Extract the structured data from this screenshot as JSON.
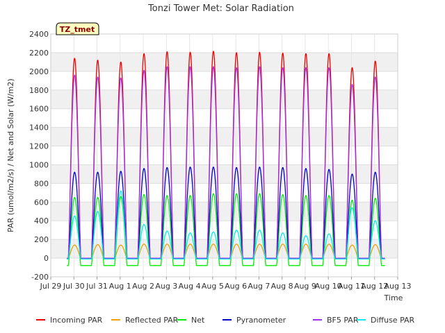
{
  "chart_data": {
    "type": "line",
    "title": "Tonzi Tower Met: Solar Radiation",
    "xlabel": "Time",
    "ylabel": "PAR (umol/m2/s) / Net and Solar (W/m2)",
    "tag_label": "TZ_tmet",
    "ylim": [
      -200,
      2400
    ],
    "y_ticks": [
      -200,
      0,
      200,
      400,
      600,
      800,
      1000,
      1200,
      1400,
      1600,
      1800,
      2000,
      2200,
      2400
    ],
    "xlim": [
      0,
      15
    ],
    "x_ticks": [
      {
        "x": 0,
        "label": "Jul 29"
      },
      {
        "x": 1,
        "label": "Jul 30"
      },
      {
        "x": 2,
        "label": "Jul 31"
      },
      {
        "x": 3,
        "label": "Aug 1"
      },
      {
        "x": 4,
        "label": "Aug 2"
      },
      {
        "x": 5,
        "label": "Aug 3"
      },
      {
        "x": 6,
        "label": "Aug 4"
      },
      {
        "x": 7,
        "label": "Aug 5"
      },
      {
        "x": 8,
        "label": "Aug 6"
      },
      {
        "x": 9,
        "label": "Aug 7"
      },
      {
        "x": 10,
        "label": "Aug 8"
      },
      {
        "x": 11,
        "label": "Aug 9"
      },
      {
        "x": 12,
        "label": "Aug 10"
      },
      {
        "x": 13,
        "label": "Aug 11"
      },
      {
        "x": 14,
        "label": "Aug 12"
      },
      {
        "x": 15,
        "label": "Aug 13"
      }
    ],
    "grid": true,
    "legend_position": "bottom",
    "series": [
      {
        "name": "Incoming PAR",
        "color": "#ee0000",
        "night": 0,
        "peaks": [
          2140,
          2120,
          2100,
          2190,
          2210,
          2205,
          2215,
          2200,
          2205,
          2195,
          2190,
          2190,
          2040,
          2110
        ]
      },
      {
        "name": "Reflected PAR",
        "color": "#f0a000",
        "night": 0,
        "peaks": [
          140,
          145,
          140,
          150,
          150,
          150,
          150,
          150,
          150,
          150,
          150,
          150,
          140,
          145
        ]
      },
      {
        "name": "Net",
        "color": "#00ee00",
        "night": -80,
        "peaks": [
          650,
          650,
          660,
          680,
          670,
          670,
          690,
          690,
          690,
          680,
          670,
          670,
          620,
          640
        ]
      },
      {
        "name": "Pyranometer",
        "color": "#0000cc",
        "night": -10,
        "peaks": [
          920,
          920,
          930,
          960,
          970,
          975,
          975,
          970,
          975,
          970,
          960,
          950,
          900,
          920
        ]
      },
      {
        "name": "BF5 PAR",
        "color": "#9933ee",
        "night": 0,
        "peaks": [
          1960,
          1940,
          1930,
          2010,
          2050,
          2050,
          2050,
          2040,
          2050,
          2040,
          2040,
          2040,
          1860,
          1940
        ]
      },
      {
        "name": "Diffuse PAR",
        "color": "#00eeee",
        "night": -10,
        "peaks": [
          450,
          500,
          720,
          360,
          290,
          270,
          280,
          300,
          300,
          270,
          240,
          260,
          540,
          400
        ]
      }
    ],
    "day_centers": [
      1.03,
      2.03,
      3.03,
      4.03,
      5.03,
      6.03,
      7.03,
      8.03,
      9.03,
      10.03,
      11.03,
      12.03,
      13.03,
      14.03
    ]
  }
}
